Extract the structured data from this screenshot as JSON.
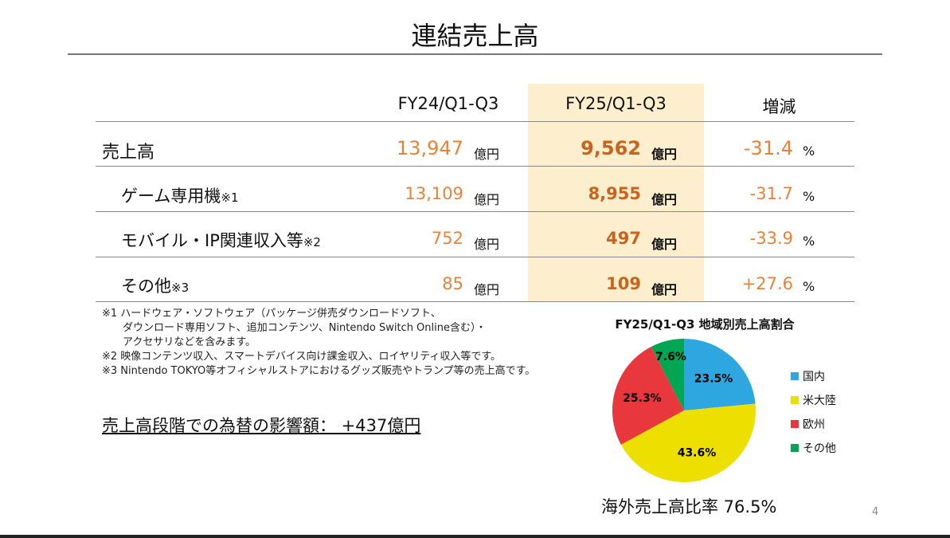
{
  "title": "連結売上高",
  "table": {
    "headers": [
      "FY24/Q1-Q3",
      "FY25/Q1-Q3",
      "増減"
    ],
    "unit": "億円",
    "pct": "%",
    "rows": [
      {
        "label": "売上高",
        "note": "",
        "fy24": "13,947",
        "fy25": "9,562",
        "change": "-31.4"
      },
      {
        "label": "ゲーム専用機",
        "note": "※1",
        "fy24": "13,109",
        "fy25": "8,955",
        "change": "-31.7"
      },
      {
        "label": "モバイル・IP関連収入等",
        "note": "※2",
        "fy24": "752",
        "fy25": "497",
        "change": "-33.9"
      },
      {
        "label": "その他",
        "note": "※3",
        "fy24": "85",
        "fy25": "109",
        "change": "+27.6"
      }
    ]
  },
  "notes": [
    "※1 ハードウェア・ソフトウェア（パッケージ併売ダウンロードソフト、",
    "　　ダウンロード専用ソフト、追加コンテンツ、Nintendo Switch Online含む）・",
    "　　アクセサリなどを含みます。",
    "※2 映像コンテンツ収入、スマートデバイス向け課金収入、ロイヤリティ収入等です。",
    "※3 Nintendo TOKYO等オフィシャルストアにおけるグッズ販売やトランプ等の売上高です。"
  ],
  "fx_impact": "売上高段階での為替の影響額：  +437億円",
  "chart_data": {
    "type": "pie",
    "title": "FY25/Q1-Q3 地域別売上高割合",
    "categories": [
      "国内",
      "米大陸",
      "欧州",
      "その他"
    ],
    "values": [
      23.5,
      43.6,
      25.3,
      7.6
    ],
    "labels": [
      "23.5%",
      "43.6%",
      "25.3%",
      "7.6%"
    ],
    "colors": [
      "#2ea7e0",
      "#ede000",
      "#e8383d",
      "#00a651"
    ],
    "legend": "right"
  },
  "overseas_ratio": "海外売上高比率 76.5%",
  "page_number": "4"
}
